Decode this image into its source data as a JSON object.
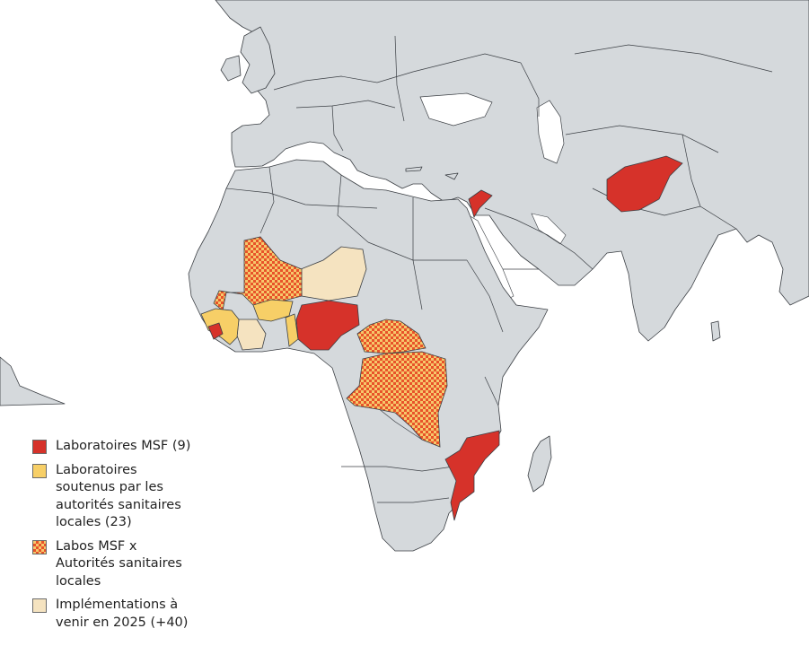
{
  "colors": {
    "land": "#d5d9dc",
    "border": "#3b3f44",
    "water": "#ffffff",
    "msf_lab": "#d6322a",
    "supported_lab": "#f7cf67",
    "checker_a": "#e8532a",
    "checker_b": "#f6c86b",
    "planned": "#f5e3c0"
  },
  "legend": {
    "items": [
      {
        "label": "Laboratoires MSF (9)",
        "swatch": "solid-red"
      },
      {
        "label": "Laboratoires\nsoutenus par les\nautorités sanitaires\nlocales (23)",
        "swatch": "solid-yellow"
      },
      {
        "label": "Labos MSF x\nAutorités sanitaires\nlocales",
        "swatch": "checkered"
      },
      {
        "label": "Implémentations à\nvenir en 2025 (+40)",
        "swatch": "solid-beige"
      }
    ]
  }
}
